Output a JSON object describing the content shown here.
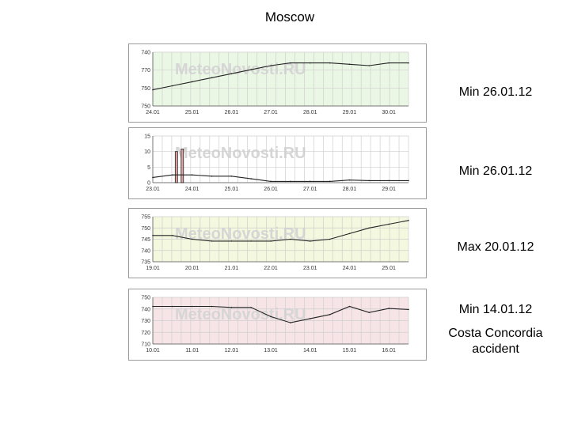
{
  "page": {
    "title": "Moscow"
  },
  "annotations": [
    "Min  26.01.12",
    "Min  26.01.12",
    "Max 20.01.12",
    "Min  14.01.12"
  ],
  "event_note": "Costa Concordia accident",
  "watermark": "MeteoNovosti.RU",
  "colors": {
    "line": "#222222",
    "bar_fill": "#e2a0a0",
    "bar_edge": "#222222",
    "grid": "#cfcfcf"
  },
  "chart_data": [
    {
      "type": "area",
      "fill_color": "#eaf7e4",
      "xlabels": [
        "24.01",
        "25.01",
        "26.01",
        "27.01",
        "28.01",
        "29.01",
        "30.01"
      ],
      "ylabels": [
        "740",
        "770",
        "750",
        "750"
      ],
      "ylim": [
        740,
        780
      ],
      "x": [
        0,
        0.5,
        1,
        1.5,
        2,
        2.5,
        3,
        3.5,
        4,
        4.5,
        5,
        5.5,
        6,
        6.5
      ],
      "values": [
        752,
        755,
        758,
        761,
        764,
        767,
        770,
        772,
        772,
        772,
        771,
        770,
        772,
        772
      ]
    },
    {
      "type": "line",
      "fill_color": "#ffffff",
      "xlabels": [
        "23.01",
        "24.01",
        "25.01",
        "26.01",
        "27.01",
        "28.01",
        "29.01"
      ],
      "ylabels": [
        "15",
        "10",
        "5",
        "0"
      ],
      "ylim": [
        0,
        18
      ],
      "x": [
        0,
        0.5,
        1,
        1.5,
        2,
        2.5,
        3,
        3.5,
        4,
        4.5,
        5,
        5.5,
        6,
        6.5
      ],
      "values": [
        2,
        3,
        3,
        2.5,
        2.5,
        1.5,
        0.5,
        0.5,
        0.5,
        0.5,
        1,
        0.8,
        0.8,
        0.8
      ],
      "bars": [
        {
          "x": 0.6,
          "value": 12
        },
        {
          "x": 0.75,
          "value": 13
        }
      ]
    },
    {
      "type": "area",
      "fill_color": "#f3f8de",
      "xlabels": [
        "19.01",
        "20.01",
        "21.01",
        "22.01",
        "23.01",
        "24.01",
        "25.01"
      ],
      "ylabels": [
        "755",
        "750",
        "745",
        "740",
        "735"
      ],
      "ylim": [
        733,
        757
      ],
      "x": [
        0,
        0.5,
        1,
        1.5,
        2,
        2.5,
        3,
        3.5,
        4,
        4.5,
        5,
        5.5,
        6,
        6.5
      ],
      "values": [
        747,
        747,
        745,
        744,
        744,
        744,
        744,
        745,
        744,
        745,
        748,
        751,
        753,
        755
      ]
    },
    {
      "type": "area",
      "fill_color": "#f6e4e7",
      "xlabels": [
        "10.01",
        "11.01",
        "12.01",
        "13.01",
        "14.01",
        "15.01",
        "16.01"
      ],
      "ylabels": [
        "750",
        "740",
        "730",
        "720",
        "710"
      ],
      "ylim": [
        706,
        752
      ],
      "x": [
        0,
        0.5,
        1,
        1.5,
        2,
        2.5,
        3,
        3.5,
        4,
        4.5,
        5,
        5.5,
        6,
        6.5
      ],
      "values": [
        743,
        743,
        743,
        743,
        742,
        742,
        733,
        727,
        731,
        735,
        743,
        737,
        741,
        740
      ]
    }
  ]
}
